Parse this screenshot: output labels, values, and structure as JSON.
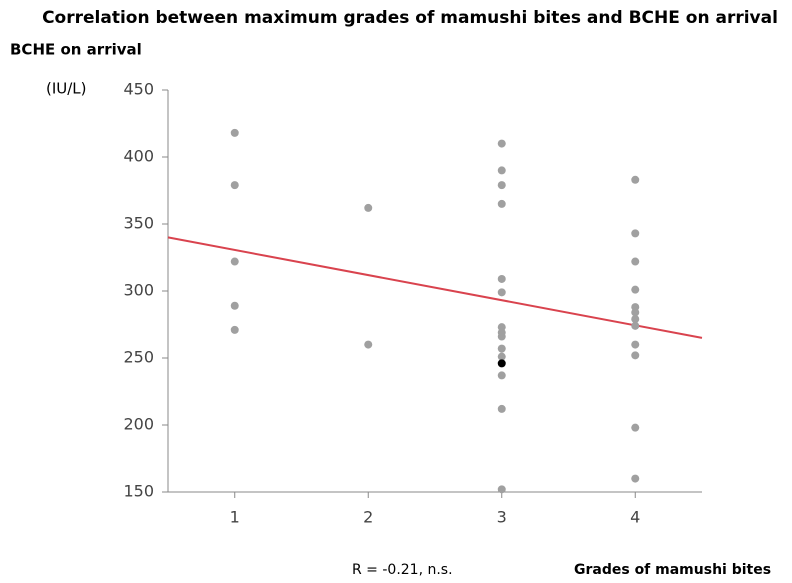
{
  "chart_data": {
    "type": "scatter",
    "title": "Correlation between maximum grades of mamushi bites and BCHE on arrival",
    "y_label": "BCHE on arrival",
    "y_unit": "(IU/L)",
    "x_label": "Grades of mamushi bites",
    "annotation": "R = -0.21, n.s.",
    "xlim": [
      0.5,
      4.5
    ],
    "xticks": [
      1,
      2,
      3,
      4
    ],
    "ylim": [
      150,
      450
    ],
    "yticks": [
      150,
      200,
      250,
      300,
      350,
      400,
      450
    ],
    "series": [
      {
        "color": "#a0a0a0",
        "x": [
          1,
          1,
          1,
          1,
          1,
          2,
          2,
          3,
          3,
          3,
          3,
          3,
          3,
          3,
          3,
          3,
          3,
          3,
          3,
          3,
          3,
          4,
          4,
          4,
          4,
          4,
          4,
          4,
          4,
          4,
          4,
          4,
          4
        ],
        "values": [
          418,
          379,
          322,
          289,
          271,
          362,
          260,
          410,
          390,
          379,
          365,
          309,
          299,
          273,
          269,
          266,
          257,
          251,
          237,
          212,
          152,
          383,
          343,
          322,
          301,
          288,
          284,
          279,
          274,
          260,
          252,
          198,
          160
        ]
      },
      {
        "color": "#000000",
        "x": [
          3
        ],
        "values": [
          246
        ]
      }
    ],
    "fit_line": {
      "color": "#d9434e",
      "x": [
        0.5,
        4.5
      ],
      "values": [
        340,
        265
      ]
    }
  }
}
